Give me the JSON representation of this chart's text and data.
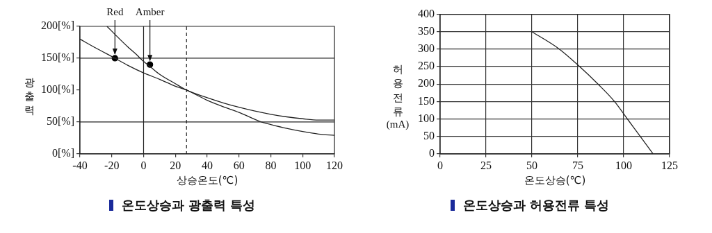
{
  "chart_data": [
    {
      "type": "line",
      "title": "온도상승과 광출력 특성",
      "xlabel": "상승온도(℃)",
      "ylabel": "광출력",
      "marker": "none",
      "grid": false,
      "xlim": [
        -40,
        120
      ],
      "xticks": [
        -40,
        -20,
        0,
        20,
        40,
        60,
        80,
        100,
        120
      ],
      "ylim": [
        0,
        200
      ],
      "yticks": [
        {
          "value": 0,
          "label": "0[%]"
        },
        {
          "value": 50,
          "label": "50[%]"
        },
        {
          "value": 100,
          "label": "100[%]"
        },
        {
          "value": 150,
          "label": "150[%]"
        },
        {
          "value": 200,
          "label": "200[%]"
        }
      ],
      "series": [
        {
          "color": "#222222",
          "x": [
            -40,
            -30,
            -18,
            -10,
            0,
            10,
            20,
            27,
            40,
            50,
            60,
            74,
            80,
            90,
            100,
            110,
            120
          ],
          "values": [
            180,
            166,
            150,
            139,
            127,
            117,
            106,
            100,
            84,
            74,
            65,
            50,
            46,
            40,
            35,
            31,
            29
          ]
        },
        {
          "color": "#222222",
          "x": [
            -23,
            -15,
            -10,
            -5,
            0,
            5,
            10,
            20,
            27,
            40,
            50,
            60,
            70,
            80,
            90,
            100,
            110,
            120
          ],
          "values": [
            200,
            180,
            168,
            157,
            145,
            135,
            125,
            110,
            100,
            88,
            80,
            73,
            67,
            62,
            58,
            55,
            53,
            53
          ]
        },
        {
          "type": "scatter",
          "marker": "circle",
          "color": "#000000",
          "x": [
            -18,
            4
          ],
          "values": [
            150,
            140
          ]
        }
      ],
      "ref_lines": [
        {
          "axis": "y",
          "value": 50
        },
        {
          "axis": "y",
          "value": 150
        },
        {
          "axis": "x",
          "value": 0
        },
        {
          "axis": "x",
          "value": 27,
          "line_style": "dashed"
        }
      ],
      "annotations": [
        {
          "text": "Red",
          "x": -18,
          "y": 150
        },
        {
          "text": "Amber",
          "x": 4,
          "y": 140
        }
      ]
    },
    {
      "type": "line",
      "title": "온도상승과 허용전류 특성",
      "xlabel": "온도상승(℃)",
      "ylabel": "허용전류 (mA)",
      "marker": "none",
      "grid": true,
      "xlim": [
        0,
        125
      ],
      "xticks": [
        0,
        25,
        50,
        75,
        100,
        125
      ],
      "ylim": [
        0,
        400
      ],
      "yticks": [
        0,
        50,
        100,
        150,
        200,
        250,
        300,
        350,
        400
      ],
      "series": [
        {
          "color": "#222222",
          "x": [
            50,
            65,
            76,
            86,
            95,
            102,
            109,
            116
          ],
          "values": [
            350,
            300,
            250,
            200,
            150,
            100,
            50,
            0
          ]
        }
      ]
    }
  ]
}
